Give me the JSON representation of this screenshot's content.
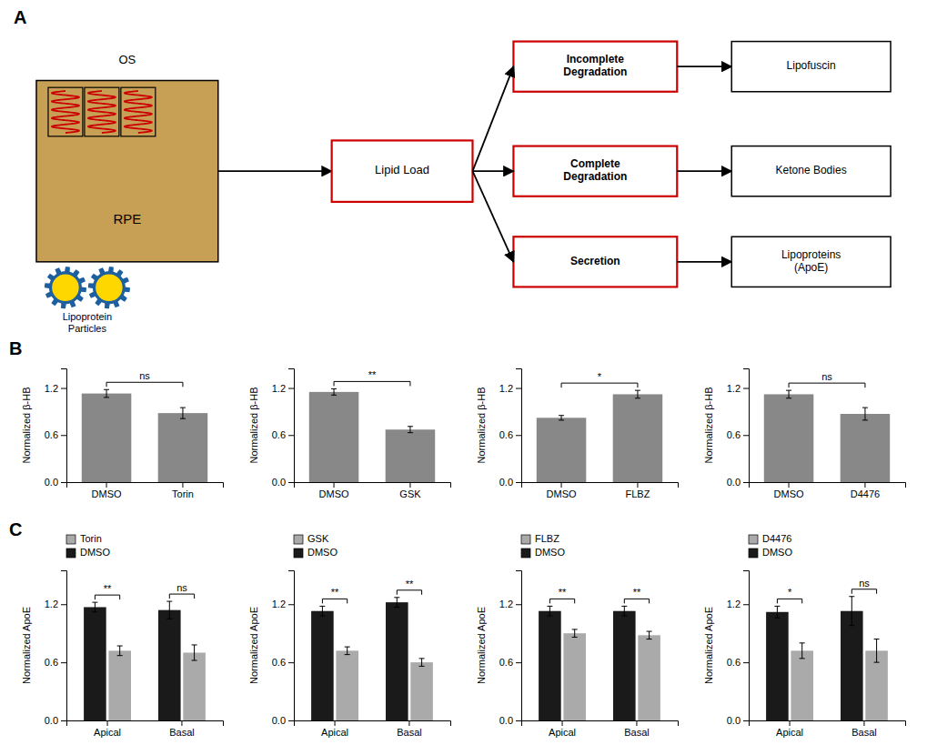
{
  "chart_data": [
    {
      "type": "diagram",
      "title": "A",
      "annotations": [
        "RPE",
        "OS",
        "Lipoprotein\nParticles",
        "Lipid Load",
        "Incomplete\nDegradation",
        "Complete\nDegradation",
        "Secretion",
        "Lipofuscin",
        "Ketone Bodies",
        "Lipoproteins\n(ApoE)"
      ]
    },
    {
      "type": "bar",
      "title": "B",
      "categories": [
        "DMSO",
        "Torin"
      ],
      "values": [
        1.13,
        0.88
      ],
      "errors": [
        0.05,
        0.07
      ],
      "color": "#888888",
      "ylabel": "Normalized β-HB",
      "ylim": [
        0,
        1.45
      ],
      "yticks": [
        {
          "value": 0,
          "label": "0.0"
        },
        0.6,
        1.2
      ],
      "grid": false,
      "annotations": [
        "ns"
      ]
    },
    {
      "type": "bar",
      "categories": [
        "DMSO",
        "GSK"
      ],
      "values": [
        1.15,
        0.67
      ],
      "errors": [
        0.04,
        0.04
      ],
      "color": "#888888",
      "ylabel": "Normalized β-HB",
      "ylim": [
        0,
        1.45
      ],
      "yticks": [
        {
          "value": 0,
          "label": "0.0"
        },
        0.6,
        1.2
      ],
      "grid": false,
      "annotations": [
        "**"
      ]
    },
    {
      "type": "bar",
      "categories": [
        "DMSO",
        "FLBZ"
      ],
      "values": [
        0.82,
        1.12
      ],
      "errors": [
        0.03,
        0.05
      ],
      "color": "#888888",
      "ylabel": "Normalized β-HB",
      "ylim": [
        0,
        1.45
      ],
      "yticks": [
        {
          "value": 0,
          "label": "0.0"
        },
        0.6,
        1.2
      ],
      "grid": false,
      "annotations": [
        "*"
      ]
    },
    {
      "type": "bar",
      "categories": [
        "DMSO",
        "D4476"
      ],
      "values": [
        1.12,
        0.87
      ],
      "errors": [
        0.05,
        0.08
      ],
      "color": "#888888",
      "ylabel": "Normalized β-HB",
      "ylim": [
        0,
        1.45
      ],
      "yticks": [
        {
          "value": 0,
          "label": "0.0"
        },
        0.6,
        1.2
      ],
      "grid": false,
      "annotations": [
        "ns"
      ]
    },
    {
      "type": "bar",
      "title": "C",
      "categories": [
        "Apical",
        "Basal"
      ],
      "series": [
        {
          "name": "DMSO",
          "color": "#1a1a1a",
          "values": [
            1.17,
            1.14
          ],
          "errors": [
            0.05,
            0.09
          ]
        },
        {
          "name": "Torin",
          "color": "#aaaaaa",
          "values": [
            0.72,
            0.7
          ],
          "errors": [
            0.05,
            0.08
          ]
        }
      ],
      "ylabel": "Normalized ApoE",
      "ylim": [
        0,
        1.55
      ],
      "yticks": [
        {
          "value": 0,
          "label": "0.0"
        },
        0.6,
        1.2
      ],
      "grid": false,
      "legend": "upper left",
      "annotations": [
        "**",
        "ns"
      ]
    },
    {
      "type": "bar",
      "categories": [
        "Apical",
        "Basal"
      ],
      "series": [
        {
          "name": "DMSO",
          "color": "#1a1a1a",
          "values": [
            1.13,
            1.22
          ],
          "errors": [
            0.05,
            0.05
          ]
        },
        {
          "name": "GSK",
          "color": "#aaaaaa",
          "values": [
            0.72,
            0.6
          ],
          "errors": [
            0.04,
            0.04
          ]
        }
      ],
      "ylabel": "Normalized ApoE",
      "ylim": [
        0,
        1.55
      ],
      "yticks": [
        {
          "value": 0,
          "label": "0.0"
        },
        0.6,
        1.2
      ],
      "grid": false,
      "legend": "upper left",
      "annotations": [
        "**",
        "**"
      ]
    },
    {
      "type": "bar",
      "categories": [
        "Apical",
        "Basal"
      ],
      "series": [
        {
          "name": "DMSO",
          "color": "#1a1a1a",
          "values": [
            1.13,
            1.13
          ],
          "errors": [
            0.05,
            0.05
          ]
        },
        {
          "name": "FLBZ",
          "color": "#aaaaaa",
          "values": [
            0.9,
            0.88
          ],
          "errors": [
            0.04,
            0.04
          ]
        }
      ],
      "ylabel": "Normalized ApoE",
      "ylim": [
        0,
        1.55
      ],
      "yticks": [
        {
          "value": 0,
          "label": "0.0"
        },
        0.6,
        1.2
      ],
      "grid": false,
      "legend": "upper left",
      "annotations": [
        "**",
        "**"
      ]
    },
    {
      "type": "bar",
      "categories": [
        "Apical",
        "Basal"
      ],
      "series": [
        {
          "name": "DMSO",
          "color": "#1a1a1a",
          "values": [
            1.12,
            1.13
          ],
          "errors": [
            0.06,
            0.15
          ]
        },
        {
          "name": "D4476",
          "color": "#aaaaaa",
          "values": [
            0.72,
            0.72
          ],
          "errors": [
            0.08,
            0.12
          ]
        }
      ],
      "ylabel": "Normalized ApoE",
      "ylim": [
        0,
        1.55
      ],
      "yticks": [
        {
          "value": 0,
          "label": "0.0"
        },
        0.6,
        1.2
      ],
      "grid": false,
      "legend": "upper left",
      "annotations": [
        "*",
        "ns"
      ]
    }
  ]
}
